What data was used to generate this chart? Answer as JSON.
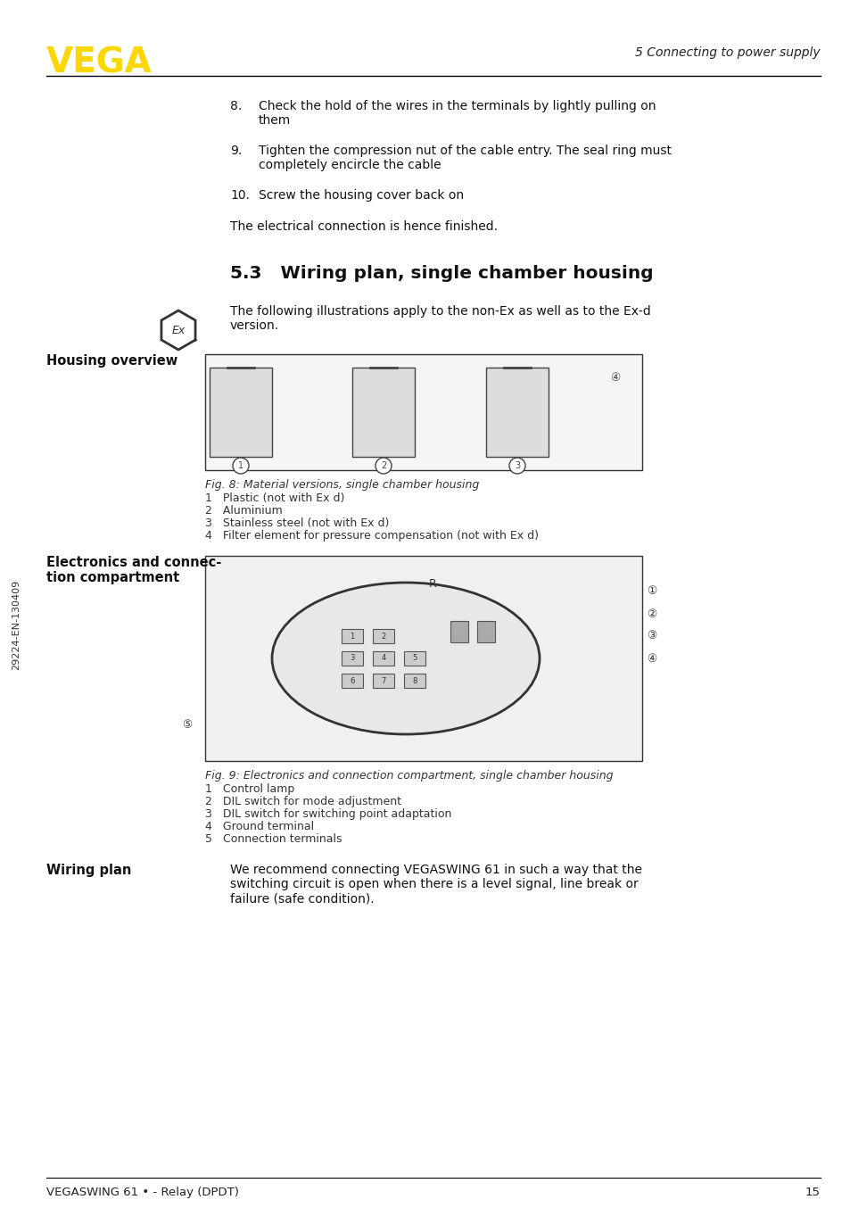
{
  "page_bg": "#ffffff",
  "header_line_color": "#000000",
  "footer_line_color": "#000000",
  "vega_logo_color": "#FFD700",
  "header_right_text": "5 Connecting to power supply",
  "footer_left_text": "VEGASWING 61 • - Relay (DPDT)",
  "footer_right_text": "15",
  "left_margin_text": "29224-EN-130409",
  "section_title": "5.3   Wiring plan, single chamber housing",
  "body_items": [
    {
      "type": "numbered",
      "num": "8.",
      "text": "Check the hold of the wires in the terminals by lightly pulling on\nthem"
    },
    {
      "type": "numbered",
      "num": "9.",
      "text": "Tighten the compression nut of the cable entry. The seal ring must\ncompletely encircle the cable"
    },
    {
      "type": "numbered",
      "num": "10.",
      "text": "Screw the housing cover back on"
    },
    {
      "type": "plain",
      "text": "The electrical connection is hence finished."
    }
  ],
  "section_intro": "The following illustrations apply to the non-Ex as well as to the Ex-d\nversion.",
  "fig8_caption": "Fig. 8: Material versions, single chamber housing",
  "fig8_items": [
    "1   Plastic (not with Ex d)",
    "2   Aluminium",
    "3   Stainless steel (not with Ex d)",
    "4   Filter element for pressure compensation (not with Ex d)"
  ],
  "housing_overview_label": "Housing overview",
  "electronics_label": "Electronics and connec-\ntion compartment",
  "fig9_caption": "Fig. 9: Electronics and connection compartment, single chamber housing",
  "fig9_items": [
    "1   Control lamp",
    "2   DIL switch for mode adjustment",
    "3   DIL switch for switching point adaptation",
    "4   Ground terminal",
    "5   Connection terminals"
  ],
  "wiring_plan_label": "Wiring plan",
  "wiring_plan_text": "We recommend connecting VEGASWING 61 in such a way that the\nswitching circuit is open when there is a level signal, line break or\nfailure (safe condition)."
}
